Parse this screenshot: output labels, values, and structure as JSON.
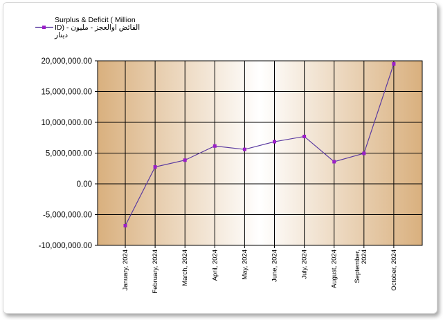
{
  "chart_data": {
    "type": "line",
    "series": [
      {
        "name": "Surplus & Deficit ( Million ID) - القائض اوالعجز - مليون دينار",
        "values": [
          -6800000,
          2750000,
          3850000,
          6150000,
          5600000,
          6850000,
          7700000,
          3600000,
          4950000,
          19500000
        ]
      }
    ],
    "categories": [
      "January, 2024",
      "February, 2024",
      "March, 2024",
      "April, 2024",
      "May, 2024",
      "June, 2024",
      "July, 2024",
      "August, 2024",
      "September, 2024",
      "October, 2024"
    ],
    "y_ticks": [
      "20,000,000.00",
      "15,000,000.00",
      "10,000,000.00",
      "5,000,000.00",
      "0.00",
      "-5,000,000.00",
      "-10,000,000.00"
    ],
    "ylim": [
      -10000000,
      20000000
    ],
    "grid": true,
    "legend_position": "top-left",
    "colors": {
      "line": "#5a3aa0",
      "marker": "#9b1fc8",
      "band_dark": "#d9b07e",
      "band_light": "#ffffff"
    }
  },
  "legend": {
    "line1": "Surplus & Deficit ( Million",
    "line2": "ID) - القائض اوالعجز - مليون",
    "line3": "دينار"
  }
}
